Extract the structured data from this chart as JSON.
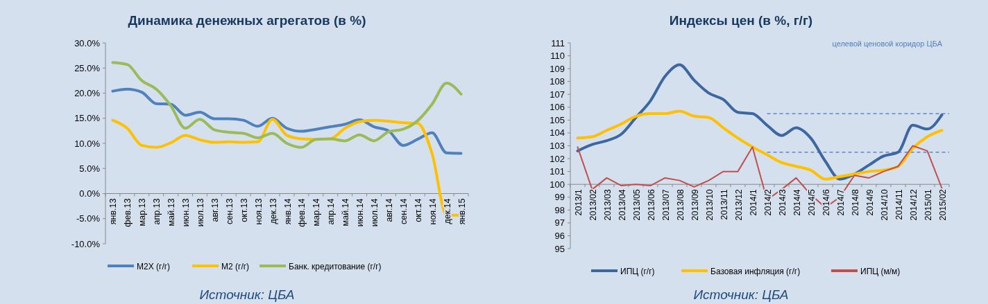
{
  "chart_data": [
    {
      "type": "line",
      "title": "Динамика денежных агрегатов (в %)",
      "categories": [
        "янв.13",
        "фев.13",
        "мар.13",
        "апр.13",
        "май.13",
        "июн.13",
        "июл.13",
        "авг.13",
        "сен.13",
        "окт.13",
        "ноя.13",
        "дек.13",
        "янв.14",
        "фев.14",
        "мар.14",
        "апр.14",
        "май.14",
        "июн.14",
        "июл.14",
        "авг.14",
        "сен.14",
        "окт.14",
        "ноя.14",
        "дек.14",
        "янв.15"
      ],
      "series": [
        {
          "name": "M2X (г/г)",
          "color": "#4f81bd",
          "values": [
            20.4,
            20.8,
            20.2,
            17.9,
            17.8,
            15.6,
            16.2,
            14.9,
            14.9,
            14.6,
            13.4,
            15.0,
            13.0,
            12.4,
            12.8,
            13.3,
            13.8,
            14.7,
            13.3,
            12.5,
            9.6,
            10.8,
            12.1,
            8.1,
            8.0
          ]
        },
        {
          "name": "M2 (г/г)",
          "color": "#ffc000",
          "values": [
            14.6,
            13.0,
            9.6,
            9.2,
            10.1,
            11.6,
            10.7,
            10.2,
            10.3,
            10.2,
            10.3,
            14.8,
            11.6,
            10.9,
            10.8,
            10.9,
            13.0,
            14.3,
            14.6,
            14.4,
            14.1,
            14.0,
            8.0,
            -4.3,
            -4.3
          ]
        },
        {
          "name": "Банк. кредитование  (г/г)",
          "color": "#9bbb59",
          "values": [
            26.1,
            25.7,
            22.5,
            20.8,
            17.5,
            13.0,
            14.8,
            12.7,
            12.2,
            12.0,
            11.1,
            12.0,
            10.0,
            9.2,
            10.8,
            10.9,
            10.5,
            11.7,
            10.5,
            12.3,
            12.8,
            14.5,
            17.8,
            22.0,
            19.8
          ]
        }
      ],
      "ylim": [
        -10,
        30
      ],
      "yticks": [
        {
          "value": -10,
          "label": "-10.0%"
        },
        {
          "value": -5,
          "label": "-5.0%"
        },
        {
          "value": 0,
          "label": "0.0%"
        },
        {
          "value": 5,
          "label": "5.0%"
        },
        {
          "value": 10,
          "label": "10.0%"
        },
        {
          "value": 15,
          "label": "15.0%"
        },
        {
          "value": 20,
          "label": "20.0%"
        },
        {
          "value": 25,
          "label": "25.0%"
        },
        {
          "value": 30,
          "label": "30.0%"
        }
      ],
      "legend": "bottom",
      "marker": "none",
      "annotations": [
        "Источник: ЦБА"
      ]
    },
    {
      "type": "line",
      "title": "Индексы цен (в %, г/г)",
      "categories": [
        "2013/1",
        "2013/02",
        "2013/03",
        "2013/04",
        "2013/05",
        "2013/06",
        "2013/07",
        "2013/08",
        "2013/09",
        "2013/10",
        "2013/11",
        "2013/12",
        "2014/1",
        "2014/2",
        "2014/3",
        "2014/4",
        "2014/5",
        "2014/6",
        "2014/7",
        "2014/8",
        "2014/9",
        "2014/10",
        "2014/11",
        "2014/12",
        "2015/01",
        "2015/02"
      ],
      "series": [
        {
          "name": "ИПЦ (г/г)",
          "color": "#3d67a0",
          "values": [
            102.6,
            103.1,
            103.4,
            103.9,
            105.2,
            106.5,
            108.4,
            109.3,
            108.1,
            107.1,
            106.6,
            105.6,
            105.5,
            104.6,
            103.8,
            104.4,
            103.6,
            101.8,
            100.4,
            100.8,
            101.5,
            102.2,
            102.5,
            104.6,
            104.3,
            105.4
          ]
        },
        {
          "name": "Базовая инфляция (г/г)",
          "color": "#ffc000",
          "values": [
            103.6,
            103.7,
            104.2,
            104.7,
            105.3,
            105.5,
            105.5,
            105.7,
            105.3,
            105.2,
            104.4,
            103.6,
            102.9,
            102.3,
            101.7,
            101.4,
            101.1,
            100.4,
            100.6,
            100.8,
            101.0,
            101.1,
            101.4,
            102.8,
            103.7,
            104.2
          ]
        },
        {
          "name": "ИПЦ (м/м)",
          "color": "#c0504d",
          "values": [
            102.9,
            99.6,
            100.5,
            99.9,
            100.0,
            99.9,
            100.5,
            100.3,
            99.8,
            100.3,
            101.0,
            101.0,
            102.9,
            98.8,
            99.6,
            100.5,
            99.2,
            98.2,
            99.0,
            100.7,
            100.5,
            101.0,
            101.4,
            103.0,
            102.6,
            99.7
          ]
        }
      ],
      "ylim": [
        95,
        111
      ],
      "yticks": [
        95,
        96,
        97,
        98,
        99,
        100,
        101,
        102,
        103,
        104,
        105,
        106,
        107,
        108,
        109,
        110,
        111
      ],
      "ref_lines": [
        {
          "axis": "y",
          "value": 105.5,
          "color": "#4472c4",
          "line_style": "dashed"
        },
        {
          "axis": "y",
          "value": 102.5,
          "color": "#4472c4",
          "line_style": "dashed"
        }
      ],
      "legend": "bottom",
      "marker": "none",
      "annotations": [
        "целевой ценовой коридор ЦБА",
        "Источник: ЦБА"
      ]
    }
  ]
}
